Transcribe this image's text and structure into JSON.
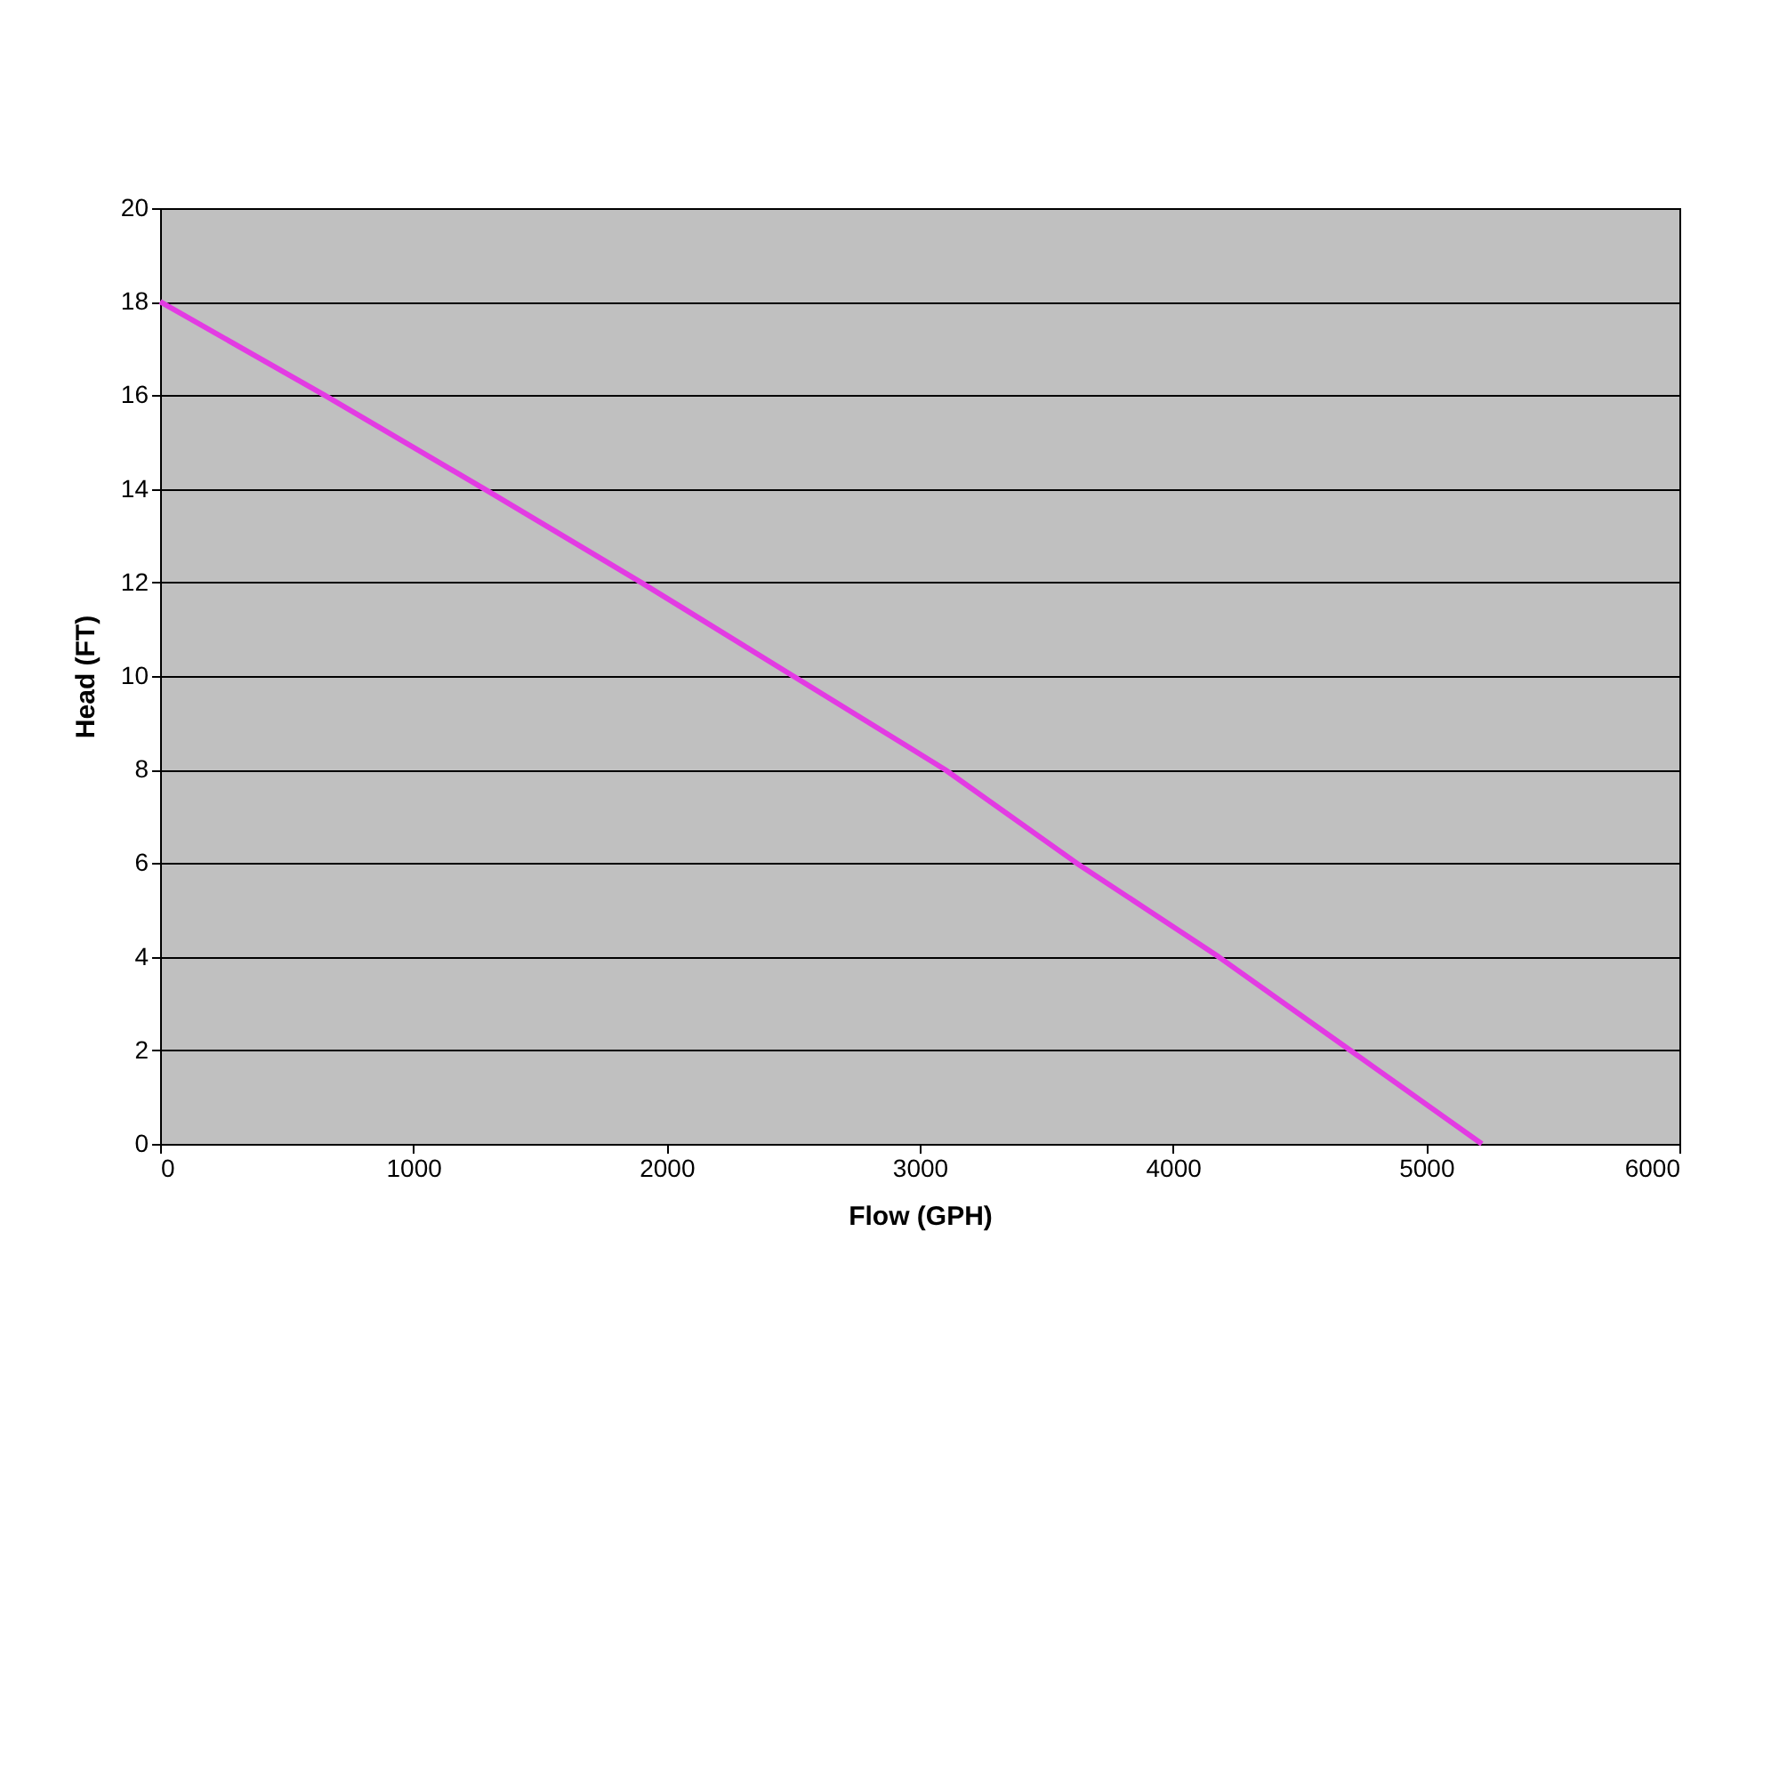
{
  "chart_data": {
    "type": "line",
    "xlabel": "Flow (GPH)",
    "ylabel": "Head (FT)",
    "x": [
      0,
      650,
      1280,
      1900,
      2500,
      3100,
      3620,
      4180,
      4700,
      5220
    ],
    "series": [
      {
        "color": "#e33be3",
        "values": [
          18,
          16,
          14,
          12,
          10,
          8,
          6,
          4,
          2,
          0
        ]
      }
    ],
    "xlim": [
      0,
      6000
    ],
    "xticks": [
      0,
      1000,
      2000,
      3000,
      4000,
      5000,
      6000
    ],
    "ylim": [
      0,
      20
    ],
    "yticks": [
      0,
      2,
      4,
      6,
      8,
      10,
      12,
      14,
      16,
      18,
      20
    ],
    "grid": "y",
    "marker": "none",
    "line_style": "solid"
  }
}
